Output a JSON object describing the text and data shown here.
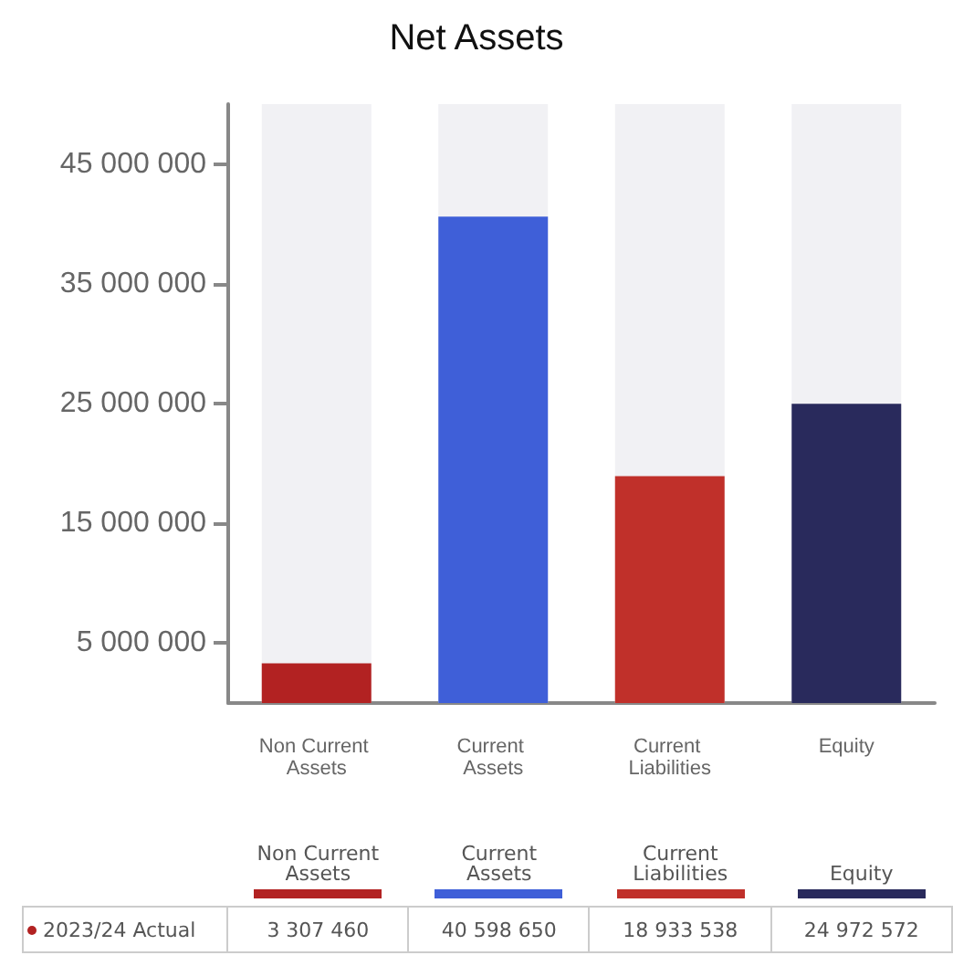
{
  "chart_data": {
    "type": "bar",
    "title": "Net Assets",
    "categories": [
      "Non Current Assets",
      "Current Assets",
      "Current Liabilities",
      "Equity"
    ],
    "series": [
      {
        "name": "2023/24 Actual",
        "colors": [
          "#b22222",
          "#3f5fd8",
          "#c0302a",
          "#292a5c"
        ],
        "values": [
          3307460,
          40598650,
          18933538,
          24972572
        ],
        "value_labels": [
          "3 307 460",
          "40 598 650",
          "18 933 538",
          "24 972 572"
        ]
      }
    ],
    "ylim": [
      0,
      50000000
    ],
    "yticks": [
      {
        "value": 5000000,
        "label": "5 000 000"
      },
      {
        "value": 15000000,
        "label": "15 000 000"
      },
      {
        "value": 25000000,
        "label": "25 000 000"
      },
      {
        "value": 35000000,
        "label": "35 000 000"
      },
      {
        "value": 45000000,
        "label": "45 000 000"
      }
    ],
    "grid": false,
    "legend": "bottom left"
  }
}
